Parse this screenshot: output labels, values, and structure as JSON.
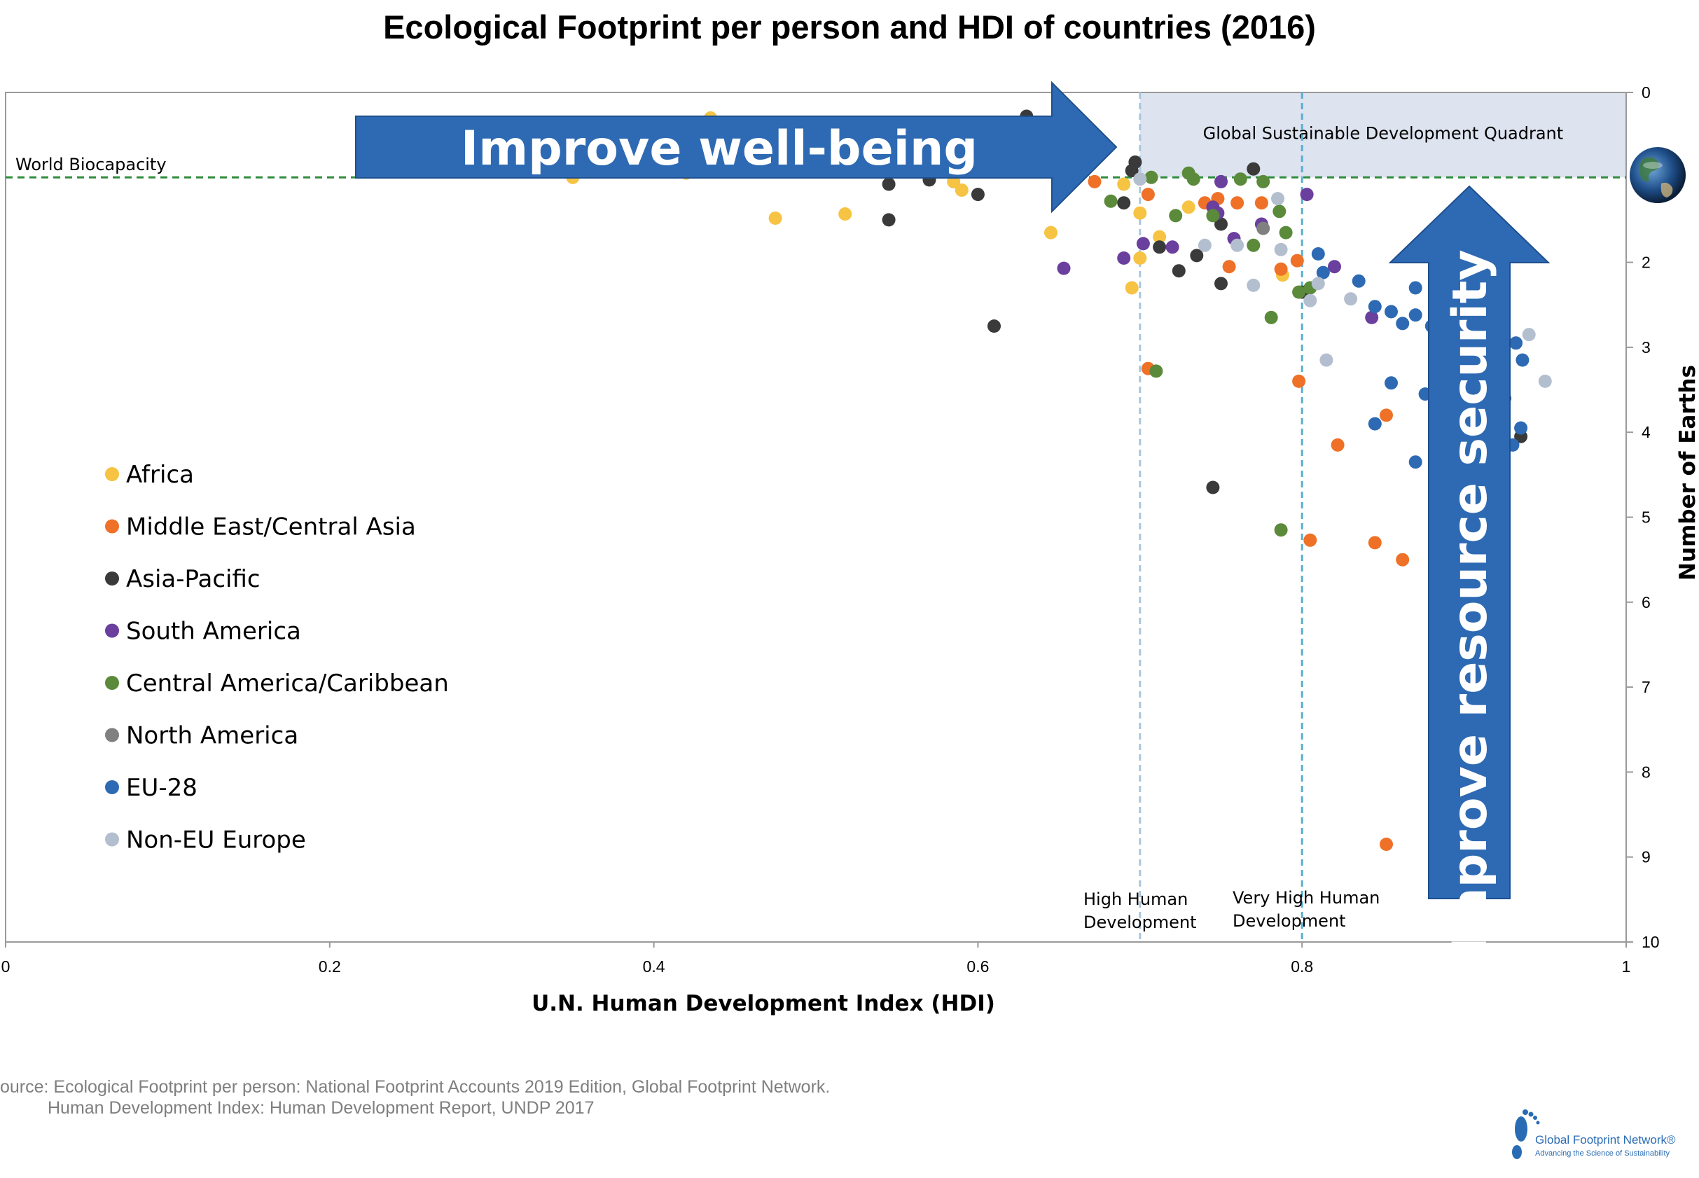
{
  "chart_data": {
    "type": "scatter",
    "title": "Ecological Footprint per person and HDI of countries (2016)",
    "xlabel": "U.N. Human Development Index  (HDI)",
    "ylabel": "Number of Earths",
    "xlim": [
      0,
      1
    ],
    "ylim": [
      0,
      10
    ],
    "y_axis_side": "right",
    "y_axis_inverted": true,
    "x_ticks": [
      "0",
      "0.2",
      "0.4",
      "0.6",
      "0.8",
      "1"
    ],
    "y_ticks": [
      "0",
      "2",
      "3",
      "4",
      "5",
      "6",
      "7",
      "8",
      "9",
      "10"
    ],
    "legend_position": "left",
    "reference_lines": {
      "world_biocapacity": {
        "label": "World Biocapacity",
        "y": 1.0,
        "color": "#2e8b3a"
      },
      "high_human_development": {
        "label_line1": "High Human",
        "label_line2": "Development",
        "x": 0.7,
        "color": "#a9c6de"
      },
      "very_high_human_development": {
        "label_line1": "Very High Human",
        "label_line2": "Development",
        "x": 0.8,
        "color": "#5aaed0"
      }
    },
    "quadrant": {
      "label": "Global Sustainable Development Quadrant",
      "x": [
        0.7,
        1.0
      ],
      "y": [
        0,
        1.0
      ],
      "color": "#dde3ef"
    },
    "arrows": {
      "horizontal_label": "Improve well-being",
      "vertical_label": "Improve resource security",
      "color": "#2e6ab3"
    },
    "series": [
      {
        "name": "Africa",
        "color": "#f6c342",
        "points": [
          [
            0.35,
            1.0
          ],
          [
            0.42,
            0.95
          ],
          [
            0.435,
            0.3
          ],
          [
            0.475,
            1.48
          ],
          [
            0.518,
            1.43
          ],
          [
            0.585,
            1.05
          ],
          [
            0.59,
            1.15
          ],
          [
            0.6,
            0.75
          ],
          [
            0.645,
            1.65
          ],
          [
            0.69,
            1.08
          ],
          [
            0.7,
            1.42
          ],
          [
            0.7,
            1.95
          ],
          [
            0.695,
            2.3
          ],
          [
            0.712,
            1.7
          ],
          [
            0.73,
            1.35
          ],
          [
            0.788,
            2.15
          ]
        ]
      },
      {
        "name": "Middle East/Central Asia",
        "color": "#ee7127",
        "points": [
          [
            0.672,
            1.05
          ],
          [
            0.705,
            1.2
          ],
          [
            0.705,
            3.25
          ],
          [
            0.74,
            1.3
          ],
          [
            0.748,
            1.25
          ],
          [
            0.755,
            2.05
          ],
          [
            0.76,
            1.3
          ],
          [
            0.775,
            1.3
          ],
          [
            0.787,
            2.08
          ],
          [
            0.797,
            1.98
          ],
          [
            0.798,
            3.4
          ],
          [
            0.805,
            5.27
          ],
          [
            0.822,
            4.15
          ],
          [
            0.845,
            5.3
          ],
          [
            0.852,
            3.8
          ],
          [
            0.862,
            5.5
          ],
          [
            0.852,
            8.85
          ]
        ]
      },
      {
        "name": "Asia-Pacific",
        "color": "#3a3a3a",
        "points": [
          [
            0.545,
            1.08
          ],
          [
            0.545,
            1.5
          ],
          [
            0.57,
            1.03
          ],
          [
            0.6,
            1.2
          ],
          [
            0.61,
            2.75
          ],
          [
            0.63,
            0.28
          ],
          [
            0.665,
            0.65
          ],
          [
            0.69,
            1.3
          ],
          [
            0.695,
            0.92
          ],
          [
            0.697,
            0.82
          ],
          [
            0.712,
            1.82
          ],
          [
            0.724,
            2.1
          ],
          [
            0.735,
            1.92
          ],
          [
            0.745,
            4.65
          ],
          [
            0.75,
            1.55
          ],
          [
            0.75,
            2.25
          ],
          [
            0.77,
            0.9
          ],
          [
            0.8,
            2.35
          ],
          [
            0.925,
            3.6
          ],
          [
            0.935,
            4.05
          ]
        ]
      },
      {
        "name": "South America",
        "color": "#6a3f9e",
        "points": [
          [
            0.653,
            2.07
          ],
          [
            0.69,
            1.95
          ],
          [
            0.702,
            1.78
          ],
          [
            0.72,
            1.82
          ],
          [
            0.745,
            1.35
          ],
          [
            0.75,
            1.05
          ],
          [
            0.748,
            1.42
          ],
          [
            0.758,
            1.72
          ],
          [
            0.775,
            1.55
          ],
          [
            0.803,
            1.2
          ],
          [
            0.82,
            2.05
          ],
          [
            0.843,
            2.65
          ]
        ]
      },
      {
        "name": "Central America/Caribbean",
        "color": "#5a8a3a",
        "points": [
          [
            0.682,
            1.28
          ],
          [
            0.707,
            1.0
          ],
          [
            0.71,
            3.28
          ],
          [
            0.722,
            1.45
          ],
          [
            0.73,
            0.95
          ],
          [
            0.733,
            1.02
          ],
          [
            0.745,
            1.45
          ],
          [
            0.762,
            1.02
          ],
          [
            0.77,
            1.8
          ],
          [
            0.776,
            1.05
          ],
          [
            0.781,
            2.65
          ],
          [
            0.786,
            1.4
          ],
          [
            0.787,
            5.15
          ],
          [
            0.79,
            1.65
          ],
          [
            0.798,
            2.35
          ],
          [
            0.805,
            2.3
          ]
        ]
      },
      {
        "name": "North America",
        "color": "#808080",
        "points": [
          [
            0.776,
            1.6
          ]
        ]
      },
      {
        "name": "EU-28",
        "color": "#2e6ab3",
        "points": [
          [
            0.81,
            1.9
          ],
          [
            0.813,
            2.12
          ],
          [
            0.835,
            2.22
          ],
          [
            0.845,
            2.52
          ],
          [
            0.855,
            2.58
          ],
          [
            0.855,
            3.42
          ],
          [
            0.862,
            2.72
          ],
          [
            0.87,
            2.3
          ],
          [
            0.87,
            2.62
          ],
          [
            0.87,
            4.35
          ],
          [
            0.876,
            3.55
          ],
          [
            0.88,
            2.75
          ],
          [
            0.845,
            3.9
          ],
          [
            0.932,
            2.95
          ],
          [
            0.936,
            3.15
          ],
          [
            0.935,
            3.95
          ],
          [
            0.93,
            4.15
          ]
        ]
      },
      {
        "name": "Non-EU Europe",
        "color": "#b3bfcf",
        "points": [
          [
            0.7,
            1.02
          ],
          [
            0.74,
            1.8
          ],
          [
            0.76,
            1.8
          ],
          [
            0.77,
            2.27
          ],
          [
            0.785,
            1.25
          ],
          [
            0.787,
            1.85
          ],
          [
            0.805,
            2.45
          ],
          [
            0.81,
            2.25
          ],
          [
            0.815,
            3.15
          ],
          [
            0.83,
            2.43
          ],
          [
            0.94,
            2.85
          ],
          [
            0.95,
            3.4
          ]
        ]
      }
    ]
  },
  "source": {
    "line1": "ource: Ecological Footprint per person: National Footprint Accounts 2019 Edition, Global Footprint Network.",
    "line2": "Human Development Index: Human Development Report, UNDP 2017"
  },
  "logo": {
    "name": "Global Footprint Network®",
    "tagline": "Advancing the Science of Sustainability"
  }
}
